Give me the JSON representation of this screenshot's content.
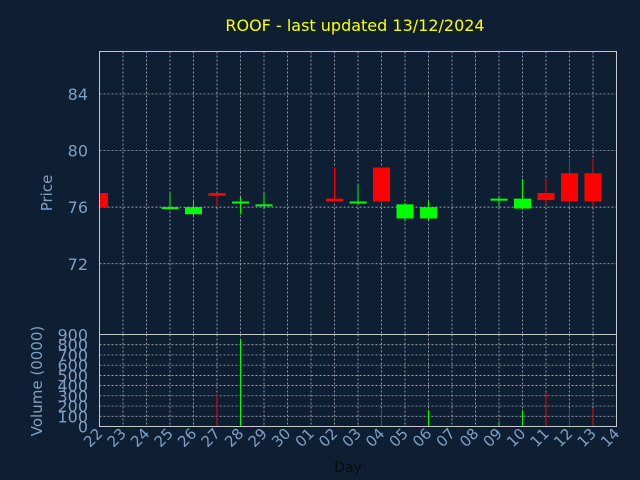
{
  "chart_data": {
    "type": "candlestick",
    "title": "ROOF - last updated 13/12/2024",
    "price_panel": {
      "ylabel": "Price",
      "ylim": [
        67,
        87
      ],
      "yticks": [
        "72",
        "76",
        "80",
        "84"
      ],
      "ytick_values": [
        72,
        76,
        80,
        84
      ]
    },
    "volume_panel": {
      "ylabel": "Volume (0000)",
      "ylim": [
        0,
        900
      ],
      "yticks": [
        "0",
        "100",
        "200",
        "300",
        "400",
        "500",
        "600",
        "700",
        "800",
        "900"
      ],
      "ytick_values": [
        0,
        100,
        200,
        300,
        400,
        500,
        600,
        700,
        800,
        900
      ]
    },
    "xlabel": "Day",
    "xtick_labels": [
      "22",
      "23",
      "24",
      "25",
      "26",
      "27",
      "28",
      "29",
      "30",
      "01",
      "02",
      "03",
      "04",
      "05",
      "06",
      "07",
      "08",
      "09",
      "10",
      "11",
      "12",
      "13",
      "14"
    ],
    "colors": {
      "up": "#00ff00",
      "down": "#ff0000",
      "background": "#0f1f33",
      "text": "#7f9fc3",
      "title": "#ffff00"
    },
    "candles": [
      {
        "day": "22",
        "open": 77.0,
        "high": 77.0,
        "low": 75.9,
        "close": 76.0,
        "volume": 0
      },
      {
        "day": "25",
        "open": 75.9,
        "high": 77.0,
        "low": 75.8,
        "close": 76.0,
        "volume": 10
      },
      {
        "day": "26",
        "open": 75.5,
        "high": 76.4,
        "low": 75.4,
        "close": 76.0,
        "volume": 10
      },
      {
        "day": "27",
        "open": 77.0,
        "high": 77.0,
        "low": 76.0,
        "close": 76.8,
        "volume": 320
      },
      {
        "day": "28",
        "open": 76.3,
        "high": 76.7,
        "low": 75.5,
        "close": 76.4,
        "volume": 850
      },
      {
        "day": "29",
        "open": 76.1,
        "high": 77.0,
        "low": 76.0,
        "close": 76.2,
        "volume": 10
      },
      {
        "day": "02",
        "open": 76.6,
        "high": 78.8,
        "low": 76.4,
        "close": 76.4,
        "volume": 10
      },
      {
        "day": "03",
        "open": 76.3,
        "high": 77.6,
        "low": 76.2,
        "close": 76.4,
        "volume": 10
      },
      {
        "day": "04",
        "open": 78.8,
        "high": 78.8,
        "low": 76.3,
        "close": 76.4,
        "volume": 150
      },
      {
        "day": "05",
        "open": 75.2,
        "high": 76.3,
        "low": 75.1,
        "close": 76.2,
        "volume": 10
      },
      {
        "day": "06",
        "open": 75.2,
        "high": 76.4,
        "low": 75.1,
        "close": 76.0,
        "volume": 160
      },
      {
        "day": "09",
        "open": 76.5,
        "high": 76.7,
        "low": 76.0,
        "close": 76.6,
        "volume": 50
      },
      {
        "day": "10",
        "open": 75.9,
        "high": 78.0,
        "low": 75.9,
        "close": 76.6,
        "volume": 160
      },
      {
        "day": "11",
        "open": 77.0,
        "high": 78.0,
        "low": 76.2,
        "close": 76.5,
        "volume": 330
      },
      {
        "day": "12",
        "open": 78.4,
        "high": 79.4,
        "low": 76.0,
        "close": 76.4,
        "volume": 170
      },
      {
        "day": "13",
        "open": 78.4,
        "high": 79.4,
        "low": 76.0,
        "close": 76.4,
        "volume": 180
      }
    ]
  }
}
